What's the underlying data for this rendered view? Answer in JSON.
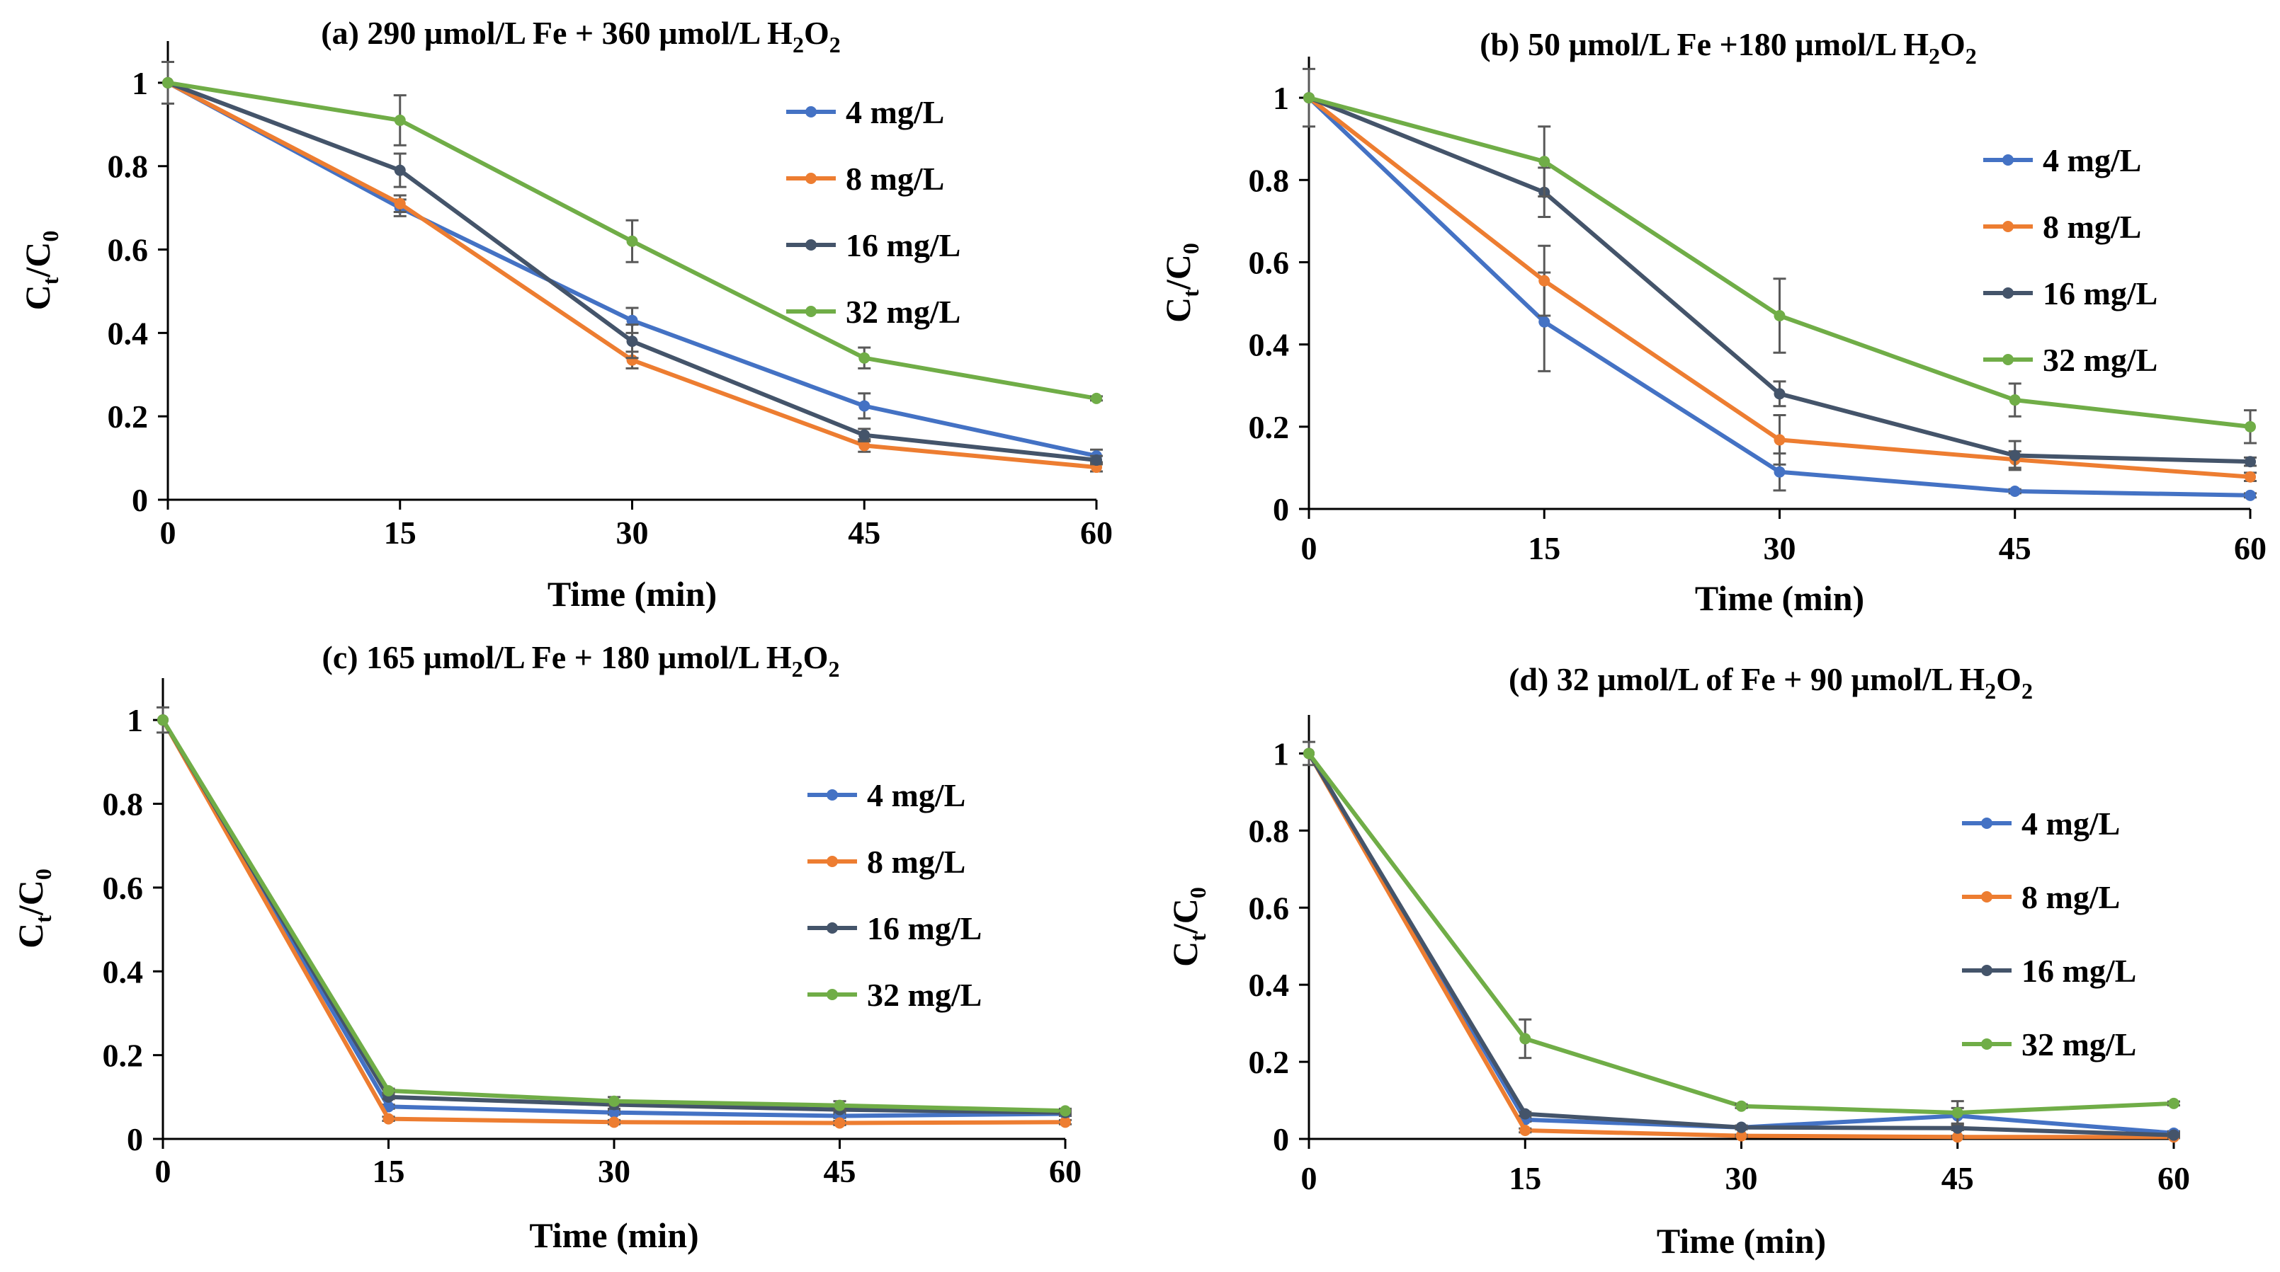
{
  "chart_data": [
    {
      "type": "line",
      "title": {
        "prefix": "(a) 290 µmol/L Fe + 360 µmol/L H",
        "sub1": "2",
        "mid": "O",
        "sub2": "2"
      },
      "xlabel": "Time (min)",
      "ylabel": {
        "main": "C",
        "sub_t": "t",
        "slash": "/C",
        "sub_0": "0"
      },
      "x": [
        0,
        15,
        30,
        45,
        60
      ],
      "x_ticks": [
        "0",
        "15",
        "30",
        "45",
        "60"
      ],
      "y_ticks": [
        "0",
        "0.2",
        "0.4",
        "0.6",
        "0.8",
        "1"
      ],
      "xlim": [
        0,
        60
      ],
      "ylim": [
        0,
        1.1
      ],
      "series": [
        {
          "name": "4 mg/L",
          "color": "#4472C4",
          "values": [
            1,
            0.7,
            0.43,
            0.225,
            0.105
          ],
          "errors": [
            0,
            0.02,
            0.03,
            0.03,
            0.015
          ]
        },
        {
          "name": "8 mg/L",
          "color": "#ED7D31",
          "values": [
            1,
            0.71,
            0.335,
            0.13,
            0.078
          ],
          "errors": [
            0,
            0.02,
            0.02,
            0.015,
            0.01
          ]
        },
        {
          "name": "16 mg/L",
          "color": "#44546A",
          "values": [
            1,
            0.79,
            0.38,
            0.155,
            0.095
          ],
          "errors": [
            0,
            0.04,
            0.04,
            0.015,
            0.01
          ]
        },
        {
          "name": "32 mg/L",
          "color": "#70AD47",
          "values": [
            1,
            0.91,
            0.62,
            0.34,
            0.243
          ],
          "errors": [
            0.05,
            0.06,
            0.05,
            0.025,
            0.005
          ]
        }
      ]
    },
    {
      "type": "line",
      "title": {
        "prefix": "(b) 50 µmol/L Fe +180 µmol/L H",
        "sub1": "2",
        "mid": "O",
        "sub2": "2"
      },
      "xlabel": "Time (min)",
      "ylabel": {
        "main": "C",
        "sub_t": "t",
        "slash": "/C",
        "sub_0": "0"
      },
      "x": [
        0,
        15,
        30,
        45,
        60
      ],
      "x_ticks": [
        "0",
        "15",
        "30",
        "45",
        "60"
      ],
      "y_ticks": [
        "0",
        "0.2",
        "0.4",
        "0.6",
        "0.8",
        "1"
      ],
      "xlim": [
        0,
        60
      ],
      "ylim": [
        0,
        1.1
      ],
      "series": [
        {
          "name": "4 mg/L",
          "color": "#4472C4",
          "values": [
            1,
            0.455,
            0.09,
            0.043,
            0.033
          ],
          "errors": [
            0,
            0.12,
            0.045,
            0.005,
            0.005
          ]
        },
        {
          "name": "8 mg/L",
          "color": "#ED7D31",
          "values": [
            1,
            0.555,
            0.168,
            0.12,
            0.078
          ],
          "errors": [
            0,
            0.085,
            0.06,
            0.02,
            0.01
          ]
        },
        {
          "name": "16 mg/L",
          "color": "#44546A",
          "values": [
            1,
            0.77,
            0.28,
            0.13,
            0.115
          ],
          "errors": [
            0,
            0.06,
            0.03,
            0.035,
            0.01
          ]
        },
        {
          "name": "32 mg/L",
          "color": "#70AD47",
          "values": [
            1,
            0.845,
            0.47,
            0.265,
            0.2
          ],
          "errors": [
            0.07,
            0.085,
            0.09,
            0.04,
            0.04
          ]
        }
      ]
    },
    {
      "type": "line",
      "title": {
        "prefix": "(c) 165 µmol/L Fe + 180 µmol/L H",
        "sub1": "2",
        "mid": "O",
        "sub2": "2"
      },
      "xlabel": "Time (min)",
      "ylabel": {
        "main": "C",
        "sub_t": "t",
        "slash": "/C",
        "sub_0": "0"
      },
      "x": [
        0,
        15,
        30,
        45,
        60
      ],
      "x_ticks": [
        "0",
        "15",
        "30",
        "45",
        "60"
      ],
      "y_ticks": [
        "0",
        "0.2",
        "0.4",
        "0.6",
        "0.8",
        "1"
      ],
      "xlim": [
        0,
        60
      ],
      "ylim": [
        0,
        1.1
      ],
      "series": [
        {
          "name": "4 mg/L",
          "color": "#4472C4",
          "values": [
            1,
            0.077,
            0.063,
            0.055,
            0.06
          ],
          "errors": [
            0,
            0.005,
            0.005,
            0.005,
            0.005
          ]
        },
        {
          "name": "8 mg/L",
          "color": "#ED7D31",
          "values": [
            1,
            0.048,
            0.04,
            0.038,
            0.04
          ],
          "errors": [
            0,
            0.005,
            0.005,
            0.005,
            0.005
          ]
        },
        {
          "name": "16 mg/L",
          "color": "#44546A",
          "values": [
            1,
            0.1,
            0.082,
            0.07,
            0.063
          ],
          "errors": [
            0,
            0.005,
            0.01,
            0.005,
            0.005
          ]
        },
        {
          "name": "32 mg/L",
          "color": "#70AD47",
          "values": [
            1,
            0.115,
            0.09,
            0.08,
            0.067
          ],
          "errors": [
            0.03,
            0.005,
            0.01,
            0.01,
            0.005
          ]
        }
      ]
    },
    {
      "type": "line",
      "title": {
        "prefix": "(d) 32 µmol/L of Fe + 90 µmol/L H",
        "sub1": "2",
        "mid": "O",
        "sub2": "2"
      },
      "xlabel": "Time (min)",
      "ylabel": {
        "main": "C",
        "sub_t": "t",
        "slash": "/C",
        "sub_0": "0"
      },
      "x": [
        0,
        15,
        30,
        45,
        60
      ],
      "x_ticks": [
        "0",
        "15",
        "30",
        "45",
        "60"
      ],
      "y_ticks": [
        "0",
        "0.2",
        "0.4",
        "0.6",
        "0.8",
        "1"
      ],
      "xlim": [
        0,
        60
      ],
      "ylim": [
        0,
        1.1
      ],
      "series": [
        {
          "name": "4 mg/L",
          "color": "#4472C4",
          "values": [
            1,
            0.05,
            0.03,
            0.06,
            0.015
          ],
          "errors": [
            0,
            0.005,
            0.005,
            0.02,
            0.005
          ]
        },
        {
          "name": "8 mg/L",
          "color": "#ED7D31",
          "values": [
            1,
            0.022,
            0.008,
            0.005,
            0.005
          ],
          "errors": [
            0,
            0.005,
            0.003,
            0.003,
            0.003
          ]
        },
        {
          "name": "16 mg/L",
          "color": "#44546A",
          "values": [
            1,
            0.065,
            0.03,
            0.028,
            0.01
          ],
          "errors": [
            0,
            0.005,
            0.005,
            0.005,
            0.005
          ]
        },
        {
          "name": "32 mg/L",
          "color": "#70AD47",
          "values": [
            1,
            0.26,
            0.085,
            0.068,
            0.092
          ],
          "errors": [
            0.03,
            0.05,
            0.005,
            0.03,
            0.005
          ]
        }
      ]
    }
  ]
}
